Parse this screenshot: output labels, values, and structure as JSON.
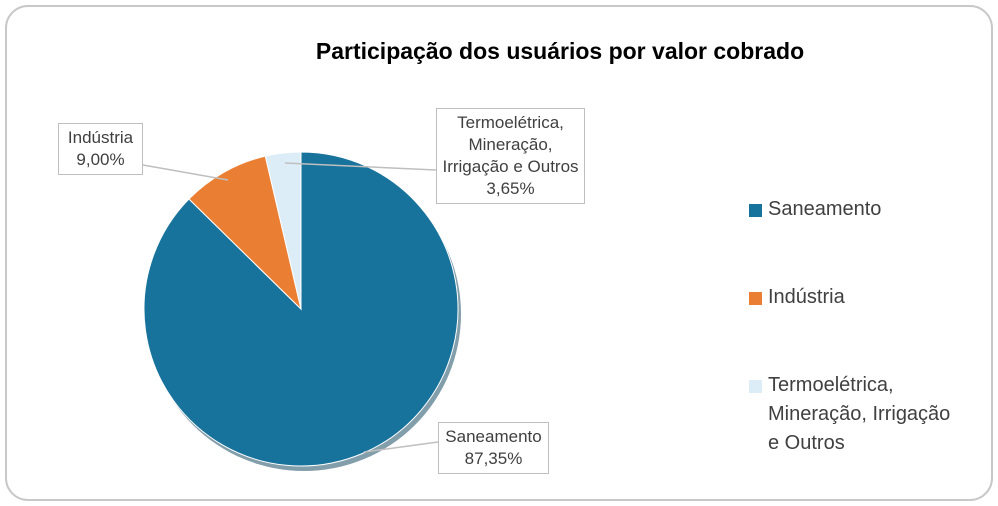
{
  "chart_data": {
    "type": "pie",
    "title": "Participação dos usuários por valor cobrado",
    "categories": [
      "Saneamento",
      "Indústria",
      "Termoelétrica, Mineração, Irrigação e Outros"
    ],
    "values": [
      87.35,
      9.0,
      3.65
    ],
    "value_labels": [
      "87,35%",
      "9,00%",
      "3,65%"
    ],
    "colors": [
      "#18739c",
      "#ea7f34",
      "#dcedf8"
    ],
    "legend": "right"
  }
}
